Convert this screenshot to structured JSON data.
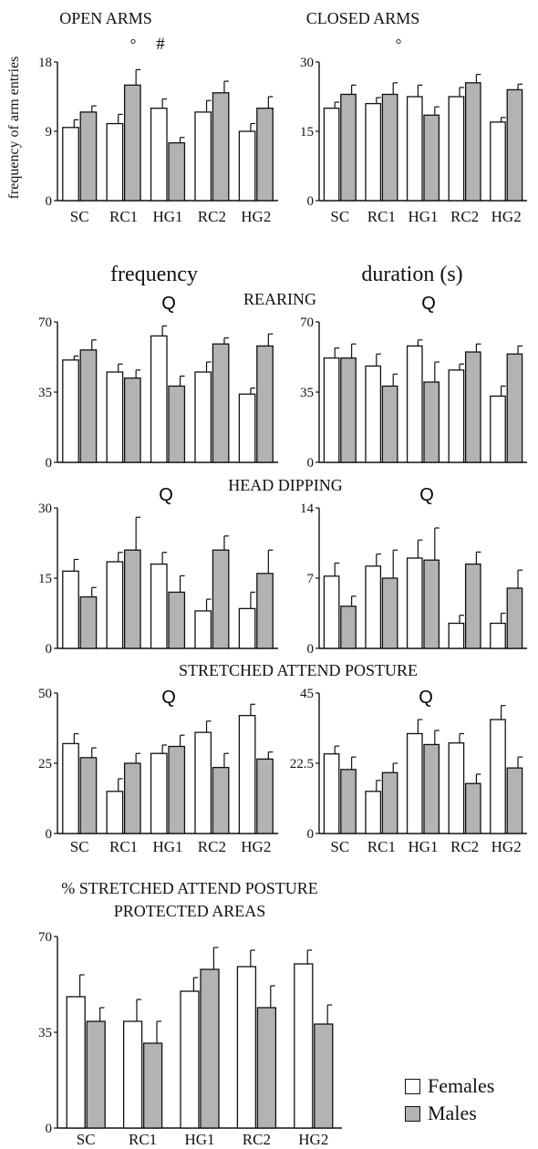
{
  "colors": {
    "females": "#ffffff",
    "males": "#b3b3b3",
    "ink": "#111111"
  },
  "headings": {
    "frequency": "frequency",
    "duration": "duration (s)",
    "rearing": "REARING",
    "head_dipping": "HEAD DIPPING",
    "sap": "STRETCHED ATTEND POSTURE",
    "protected_line1": "% STRETCHED ATTEND POSTURE",
    "protected_line2": "PROTECTED AREAS"
  },
  "legend": {
    "females": "Females",
    "males": "Males"
  },
  "chart_data": [
    {
      "id": "open_arms",
      "type": "bar",
      "title": "OPEN ARMS",
      "ylabel": "frequency of arm entries",
      "ylim": [
        0,
        18
      ],
      "yticks": [
        "0",
        "9",
        "18"
      ],
      "categories": [
        "SC",
        "RC1",
        "HG1",
        "RC2",
        "HG2"
      ],
      "markers": [
        "°",
        "#"
      ],
      "series": [
        {
          "name": "Females",
          "values": [
            9.5,
            10,
            12,
            11.5,
            9
          ],
          "errors": [
            1,
            1.2,
            1.2,
            1.5,
            1
          ]
        },
        {
          "name": "Males",
          "values": [
            11.5,
            15,
            7.5,
            14,
            12
          ],
          "errors": [
            0.8,
            2,
            0.7,
            1.5,
            1.5
          ]
        }
      ]
    },
    {
      "id": "closed_arms",
      "type": "bar",
      "title": "CLOSED ARMS",
      "ylim": [
        0,
        30
      ],
      "yticks": [
        "0",
        "15",
        "30"
      ],
      "categories": [
        "SC",
        "RC1",
        "HG1",
        "RC2",
        "HG2"
      ],
      "markers": [
        "°"
      ],
      "series": [
        {
          "name": "Females",
          "values": [
            20,
            21,
            22.5,
            22.5,
            17
          ],
          "errors": [
            1.3,
            1.3,
            2.5,
            2,
            1
          ]
        },
        {
          "name": "Males",
          "values": [
            23,
            23,
            18.5,
            25.5,
            24
          ],
          "errors": [
            2,
            2.5,
            1.8,
            1.8,
            1.2
          ]
        }
      ]
    },
    {
      "id": "rearing_freq",
      "type": "bar",
      "ylim": [
        0,
        70
      ],
      "yticks": [
        "0",
        "35",
        "70"
      ],
      "marker": "Q",
      "categories": [
        "SC",
        "RC1",
        "HG1",
        "RC2",
        "HG2"
      ],
      "series": [
        {
          "name": "Females",
          "values": [
            51,
            45,
            63,
            45,
            34
          ],
          "errors": [
            2,
            4,
            5,
            5,
            3
          ]
        },
        {
          "name": "Males",
          "values": [
            56,
            42,
            38,
            59,
            58
          ],
          "errors": [
            5,
            4,
            5,
            3,
            6
          ]
        }
      ]
    },
    {
      "id": "rearing_dur",
      "type": "bar",
      "ylim": [
        0,
        70
      ],
      "yticks": [
        "0",
        "35",
        "70"
      ],
      "marker": "Q",
      "categories": [
        "SC",
        "RC1",
        "HG1",
        "RC2",
        "HG2"
      ],
      "series": [
        {
          "name": "Females",
          "values": [
            52,
            48,
            58,
            46,
            33
          ],
          "errors": [
            5,
            6,
            3,
            3,
            5
          ]
        },
        {
          "name": "Males",
          "values": [
            52,
            38,
            40,
            55,
            54
          ],
          "errors": [
            7,
            6,
            10,
            4,
            4
          ]
        }
      ]
    },
    {
      "id": "headdip_freq",
      "type": "bar",
      "ylim": [
        0,
        30
      ],
      "yticks": [
        "0",
        "15",
        "30"
      ],
      "marker": "Q",
      "categories": [
        "SC",
        "RC1",
        "HG1",
        "RC2",
        "HG2"
      ],
      "series": [
        {
          "name": "Females",
          "values": [
            16.5,
            18.5,
            18,
            8,
            8.5
          ],
          "errors": [
            2.5,
            2,
            2.5,
            2.5,
            3.5
          ]
        },
        {
          "name": "Males",
          "values": [
            11,
            21,
            12,
            21,
            16
          ],
          "errors": [
            2,
            7,
            3.5,
            3,
            5
          ]
        }
      ]
    },
    {
      "id": "headdip_dur",
      "type": "bar",
      "ylim": [
        0,
        14
      ],
      "yticks": [
        "0",
        "7",
        "14"
      ],
      "marker": "Q",
      "categories": [
        "SC",
        "RC1",
        "HG1",
        "RC2",
        "HG2"
      ],
      "series": [
        {
          "name": "Females",
          "values": [
            7.2,
            8.2,
            9,
            2.5,
            2.5
          ],
          "errors": [
            1.3,
            1.2,
            1.8,
            0.8,
            1
          ]
        },
        {
          "name": "Males",
          "values": [
            4.2,
            7,
            8.8,
            8.4,
            6
          ],
          "errors": [
            1,
            2.8,
            3.2,
            1.2,
            1.8
          ]
        }
      ]
    },
    {
      "id": "sap_freq",
      "type": "bar",
      "ylim": [
        0,
        50
      ],
      "yticks": [
        "0",
        "25",
        "50"
      ],
      "marker": "Q",
      "categories": [
        "SC",
        "RC1",
        "HG1",
        "RC2",
        "HG2"
      ],
      "series": [
        {
          "name": "Females",
          "values": [
            32,
            15,
            28.5,
            36,
            42
          ],
          "errors": [
            3.5,
            4.5,
            3,
            4,
            4
          ]
        },
        {
          "name": "Males",
          "values": [
            27,
            25,
            31,
            23.5,
            26.5
          ],
          "errors": [
            3.5,
            3.5,
            4,
            5,
            2.5
          ]
        }
      ]
    },
    {
      "id": "sap_dur",
      "type": "bar",
      "ylim": [
        0,
        45
      ],
      "yticks": [
        "0",
        "22.5",
        "45"
      ],
      "marker": "Q",
      "categories": [
        "SC",
        "RC1",
        "HG1",
        "RC2",
        "HG2"
      ],
      "series": [
        {
          "name": "Females",
          "values": [
            25.5,
            13.5,
            32,
            29,
            36.5
          ],
          "errors": [
            2.5,
            3.5,
            4.5,
            3,
            4.5
          ]
        },
        {
          "name": "Males",
          "values": [
            20.5,
            19.5,
            28.5,
            16,
            21
          ],
          "errors": [
            4,
            3,
            4.5,
            3,
            3.5
          ]
        }
      ]
    },
    {
      "id": "sap_protected",
      "type": "bar",
      "ylim": [
        0,
        70
      ],
      "yticks": [
        "0",
        "35",
        "70"
      ],
      "categories": [
        "SC",
        "RC1",
        "HG1",
        "RC2",
        "HG2"
      ],
      "series": [
        {
          "name": "Females",
          "values": [
            48,
            39,
            50,
            59,
            60
          ],
          "errors": [
            8,
            8,
            5,
            6,
            5
          ]
        },
        {
          "name": "Males",
          "values": [
            39,
            31,
            58,
            44,
            38
          ],
          "errors": [
            5,
            8,
            8,
            8,
            7
          ]
        }
      ]
    }
  ]
}
